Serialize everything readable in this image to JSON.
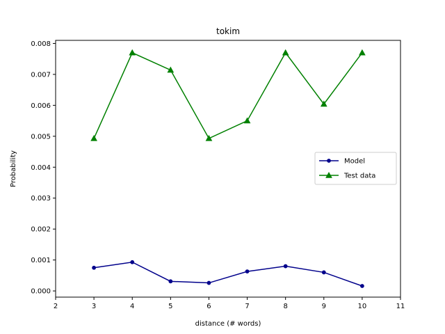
{
  "chart_data": {
    "type": "line",
    "title": "tokim",
    "xlabel": "distance (# words)",
    "ylabel": "Probability",
    "xlim": [
      2,
      11
    ],
    "ylim": [
      -0.0002,
      0.0081
    ],
    "xticks": [
      2,
      3,
      4,
      5,
      6,
      7,
      8,
      9,
      10,
      11
    ],
    "yticks": [
      0.0,
      0.001,
      0.002,
      0.003,
      0.004,
      0.005,
      0.006,
      0.007,
      0.008
    ],
    "ytick_labels": [
      "0.000",
      "0.001",
      "0.002",
      "0.003",
      "0.004",
      "0.005",
      "0.006",
      "0.007",
      "0.008"
    ],
    "grid": false,
    "legend_position": "center-right",
    "x": [
      3,
      4,
      5,
      6,
      7,
      8,
      9,
      10
    ],
    "series": [
      {
        "name": "Model",
        "color": "#00008b",
        "marker": "circle",
        "values": [
          0.00075,
          0.00093,
          0.00031,
          0.00026,
          0.00063,
          0.0008,
          0.0006,
          0.00016
        ]
      },
      {
        "name": "Test data",
        "color": "#008000",
        "marker": "triangle",
        "values": [
          0.00493,
          0.0077,
          0.00714,
          0.00493,
          0.0055,
          0.0077,
          0.00604,
          0.0077
        ]
      }
    ]
  }
}
